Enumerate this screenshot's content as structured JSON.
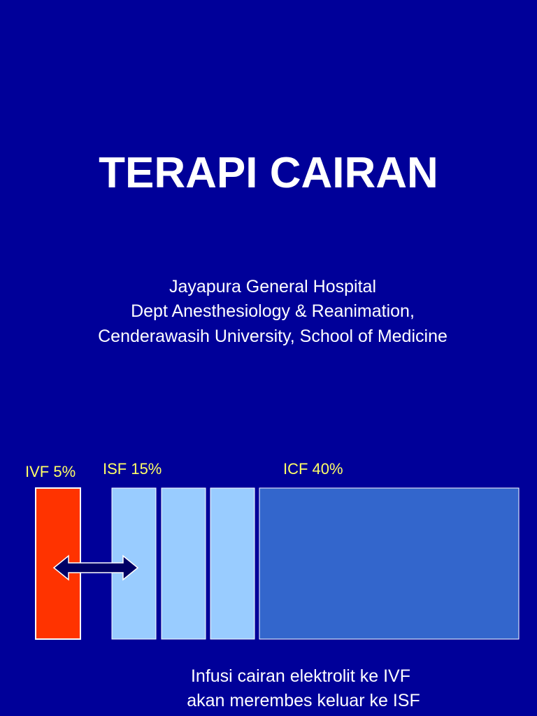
{
  "title": "TERAPI CAIRAN",
  "subtitle": [
    "Jayapura General Hospital",
    "Dept Anesthesiology & Reanimation,",
    "Cenderawasih University, School of Medicine"
  ],
  "diagram": {
    "labels": [
      "IVF 5%",
      "ISF 15%",
      "ICF 40%"
    ]
  },
  "caption": [
    "Infusi cairan elektrolit ke IVF",
    "akan merembes keluar ke ISF"
  ]
}
